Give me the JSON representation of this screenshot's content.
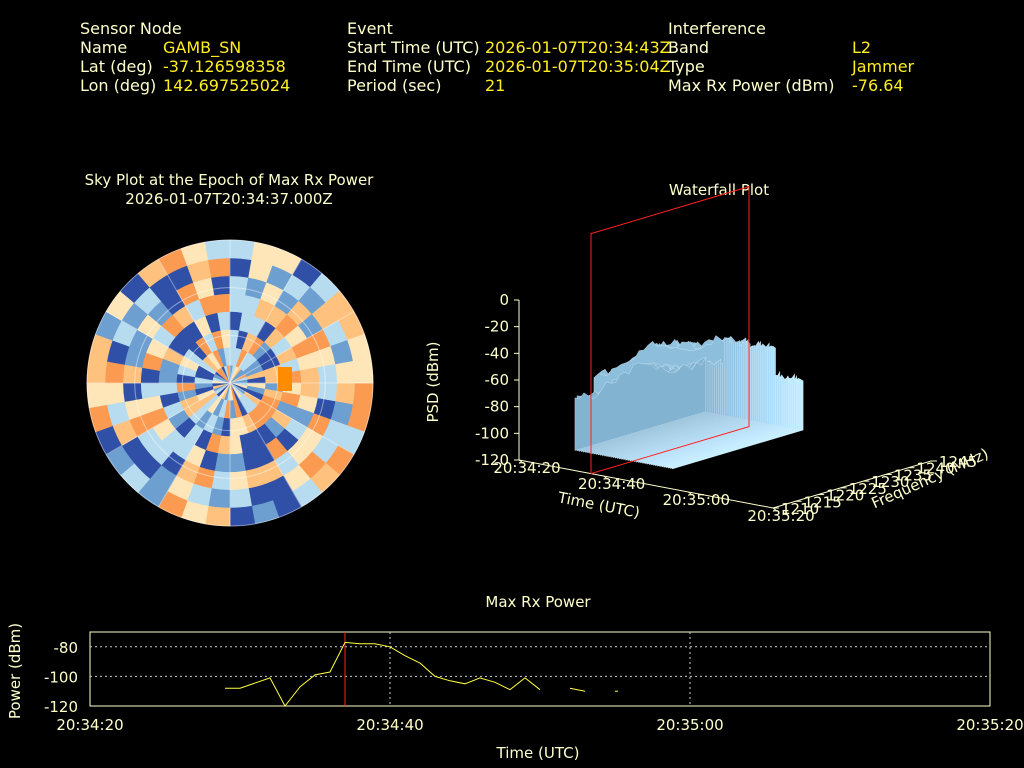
{
  "header": {
    "sensor_node": {
      "heading": "Sensor Node",
      "name_label": "Name",
      "name_value": "GAMB_SN",
      "lat_label": "Lat (deg)",
      "lat_value": "-37.126598358",
      "lon_label": "Lon (deg)",
      "lon_value": "142.697525024"
    },
    "event": {
      "heading": "Event",
      "start_label": "Start Time (UTC)",
      "start_value": "2026-01-07T20:34:43Z",
      "end_label": "End Time (UTC)",
      "end_value": "2026-01-07T20:35:04Z",
      "period_label": "Period (sec)",
      "period_value": "21"
    },
    "interference": {
      "heading": "Interference",
      "band_label": "Band",
      "band_value": "L2",
      "type_label": "Type",
      "type_value": "Jammer",
      "power_label": "Max Rx Power (dBm)",
      "power_value": "-76.64"
    }
  },
  "colors": {
    "background": "#000000",
    "text": "#ffffcc",
    "value": "#ffee22",
    "marker": "#ff2222",
    "trace": "#ffff44",
    "grid": "#cccccc"
  },
  "chart_data": [
    {
      "type": "heatmap",
      "title": "Sky Plot at the Epoch of Max Rx Power",
      "subtitle": "2026-01-07T20:34:37.000Z",
      "projection": "polar",
      "colormap": [
        "#3050a8",
        "#6d9fd0",
        "#b8dcef",
        "#ffe6b8",
        "#ffc27e",
        "#fb9b52"
      ],
      "highlight_color": "#ff8c00"
    },
    {
      "type": "area",
      "title": "Waterfall Plot",
      "xlabel": "Time (UTC)",
      "ylabel": "Frequency (MHz)",
      "zlabel": "PSD (dBm)",
      "x_ticks": [
        "20:34:20",
        "20:34:40",
        "20:35:00",
        "20:35:20"
      ],
      "y_ticks": [
        "1210",
        "1215",
        "1220",
        "1225",
        "1230",
        "1235",
        "1240",
        "1245"
      ],
      "z_ticks": [
        "0",
        "-20",
        "-40",
        "-60",
        "-80",
        "-100",
        "-120"
      ],
      "zlim": [
        -120,
        0
      ],
      "marker_time": "20:34:37"
    },
    {
      "type": "line",
      "title": "Max Rx Power",
      "xlabel": "Time (UTC)",
      "ylabel": "Power (dBm)",
      "x_ticks": [
        "20:34:20",
        "20:34:40",
        "20:35:00",
        "20:35:20"
      ],
      "y_ticks": [
        "-80",
        "-100",
        "-120"
      ],
      "ylim": [
        -120,
        -70
      ],
      "grid": true,
      "marker_time": "20:34:37",
      "series": [
        {
          "segments": [
            {
              "x": [
                "20:34:29",
                "20:34:30",
                "20:34:32",
                "20:34:33",
                "20:34:34",
                "20:34:35",
                "20:34:36",
                "20:34:37",
                "20:34:38",
                "20:34:39",
                "20:34:40",
                "20:34:41",
                "20:34:42",
                "20:34:43",
                "20:34:44",
                "20:34:45",
                "20:34:46",
                "20:34:47",
                "20:34:48",
                "20:34:49",
                "20:34:50"
              ],
              "y": [
                -108,
                -108,
                -101,
                -120,
                -107,
                -99,
                -97,
                -77,
                -78,
                -78,
                -80,
                -86,
                -91,
                -100,
                -103,
                -105,
                -101,
                -104,
                -109,
                -101,
                -109
              ]
            },
            {
              "x": [
                "20:34:52",
                "20:34:53"
              ],
              "y": [
                -108,
                -110
              ]
            },
            {
              "x": [
                "20:34:55",
                "20:34:55.2"
              ],
              "y": [
                -110,
                -110
              ]
            }
          ]
        }
      ]
    }
  ]
}
